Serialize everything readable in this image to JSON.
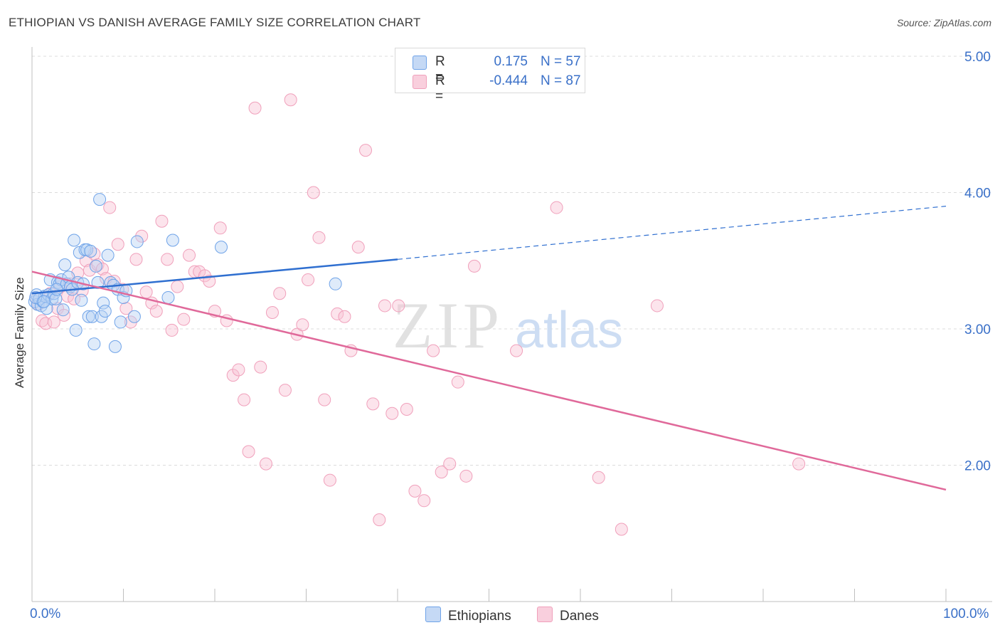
{
  "header": {
    "title": "ETHIOPIAN VS DANISH AVERAGE FAMILY SIZE CORRELATION CHART",
    "source": "Source: ZipAtlas.com"
  },
  "legend": {
    "rows": [
      {
        "r_label": "R =",
        "r_value": "0.175",
        "n_label": "N = 57"
      },
      {
        "r_label": "R =",
        "r_value": "-0.444",
        "n_label": "N = 87"
      }
    ],
    "bottom": [
      "Ethiopians",
      "Danes"
    ]
  },
  "colors": {
    "ethiopians": "#6fa3e8",
    "ethiopians_line": "#2f6fd0",
    "danes": "#f0a0bb",
    "danes_line": "#e0699a",
    "axis_text": "#3a70c8"
  },
  "watermark": {
    "zip": "ZIP",
    "atlas": "atlas"
  },
  "chart_data": {
    "type": "scatter",
    "title": "ETHIOPIAN VS DANISH AVERAGE FAMILY SIZE CORRELATION CHART",
    "xlabel": "",
    "ylabel": "Average Family Size",
    "x_tick_labels": [
      "0.0%",
      "100.0%"
    ],
    "y_tick_labels": [
      "2.00",
      "3.00",
      "4.00",
      "5.00"
    ],
    "xlim": [
      0,
      100
    ],
    "ylim": [
      1.05,
      5.1
    ],
    "grid": true,
    "legend_position": "top-center",
    "series": [
      {
        "name": "Ethiopians",
        "r": 0.175,
        "n": 57,
        "trend": {
          "x": [
            0,
            40,
            100
          ],
          "y": [
            3.26,
            3.51,
            3.9
          ],
          "solid_until": 40
        },
        "points": [
          [
            0.3,
            3.2
          ],
          [
            0.5,
            3.25
          ],
          [
            0.6,
            3.18
          ],
          [
            0.8,
            3.22
          ],
          [
            1.0,
            3.17
          ],
          [
            1.2,
            3.2
          ],
          [
            1.4,
            3.24
          ],
          [
            1.6,
            3.15
          ],
          [
            1.8,
            3.25
          ],
          [
            2.0,
            3.36
          ],
          [
            2.2,
            3.22
          ],
          [
            2.4,
            3.26
          ],
          [
            2.6,
            3.22
          ],
          [
            2.8,
            3.34
          ],
          [
            3.0,
            3.33
          ],
          [
            3.2,
            3.36
          ],
          [
            3.4,
            3.14
          ],
          [
            3.6,
            3.47
          ],
          [
            3.8,
            3.33
          ],
          [
            4.0,
            3.38
          ],
          [
            4.2,
            3.31
          ],
          [
            4.4,
            3.29
          ],
          [
            4.6,
            3.65
          ],
          [
            4.8,
            2.99
          ],
          [
            5.0,
            3.34
          ],
          [
            5.2,
            3.56
          ],
          [
            5.4,
            3.21
          ],
          [
            5.6,
            3.33
          ],
          [
            5.8,
            3.58
          ],
          [
            6.0,
            3.58
          ],
          [
            6.2,
            3.09
          ],
          [
            6.4,
            3.57
          ],
          [
            6.6,
            3.09
          ],
          [
            6.8,
            2.89
          ],
          [
            7.0,
            3.46
          ],
          [
            7.2,
            3.34
          ],
          [
            7.4,
            3.95
          ],
          [
            7.6,
            3.09
          ],
          [
            7.8,
            3.19
          ],
          [
            8.0,
            3.13
          ],
          [
            8.3,
            3.54
          ],
          [
            8.6,
            3.34
          ],
          [
            8.9,
            3.32
          ],
          [
            9.1,
            2.87
          ],
          [
            9.4,
            3.29
          ],
          [
            9.7,
            3.05
          ],
          [
            10.0,
            3.23
          ],
          [
            10.3,
            3.28
          ],
          [
            11.2,
            3.09
          ],
          [
            11.5,
            3.64
          ],
          [
            14.9,
            3.23
          ],
          [
            15.4,
            3.65
          ],
          [
            20.7,
            3.6
          ],
          [
            33.2,
            3.33
          ],
          [
            0.4,
            3.23
          ],
          [
            1.3,
            3.2
          ],
          [
            2.7,
            3.29
          ]
        ]
      },
      {
        "name": "Danes",
        "r": -0.444,
        "n": 87,
        "trend": {
          "x": [
            0,
            100
          ],
          "y": [
            3.42,
            1.82
          ],
          "solid_until": 100
        },
        "points": [
          [
            0.4,
            3.23
          ],
          [
            0.7,
            3.18
          ],
          [
            1.1,
            3.06
          ],
          [
            1.5,
            3.04
          ],
          [
            2.0,
            3.26
          ],
          [
            2.4,
            3.05
          ],
          [
            2.8,
            3.15
          ],
          [
            3.1,
            3.31
          ],
          [
            3.5,
            3.1
          ],
          [
            3.9,
            3.24
          ],
          [
            4.2,
            3.33
          ],
          [
            4.6,
            3.22
          ],
          [
            5.0,
            3.41
          ],
          [
            5.5,
            3.28
          ],
          [
            5.9,
            3.5
          ],
          [
            6.3,
            3.43
          ],
          [
            6.8,
            3.55
          ],
          [
            7.2,
            3.47
          ],
          [
            7.7,
            3.44
          ],
          [
            8.1,
            3.37
          ],
          [
            8.5,
            3.89
          ],
          [
            9.0,
            3.35
          ],
          [
            9.4,
            3.62
          ],
          [
            9.9,
            3.29
          ],
          [
            10.3,
            3.15
          ],
          [
            10.8,
            3.05
          ],
          [
            11.4,
            3.51
          ],
          [
            12.0,
            3.68
          ],
          [
            12.5,
            3.27
          ],
          [
            13.1,
            3.19
          ],
          [
            13.6,
            3.13
          ],
          [
            14.2,
            3.79
          ],
          [
            14.8,
            3.51
          ],
          [
            15.3,
            2.99
          ],
          [
            15.9,
            3.31
          ],
          [
            16.6,
            3.07
          ],
          [
            17.2,
            3.54
          ],
          [
            17.8,
            3.42
          ],
          [
            18.3,
            3.42
          ],
          [
            18.9,
            3.39
          ],
          [
            19.4,
            3.35
          ],
          [
            20.0,
            3.13
          ],
          [
            20.6,
            3.74
          ],
          [
            21.3,
            3.06
          ],
          [
            22.0,
            2.66
          ],
          [
            22.6,
            2.7
          ],
          [
            23.2,
            2.48
          ],
          [
            23.7,
            2.1
          ],
          [
            24.4,
            4.62
          ],
          [
            25.0,
            2.72
          ],
          [
            25.6,
            2.01
          ],
          [
            26.3,
            3.12
          ],
          [
            27.1,
            3.26
          ],
          [
            27.7,
            2.55
          ],
          [
            28.3,
            4.68
          ],
          [
            29.0,
            2.96
          ],
          [
            29.6,
            3.03
          ],
          [
            30.2,
            3.36
          ],
          [
            30.8,
            4.0
          ],
          [
            31.4,
            3.67
          ],
          [
            32.0,
            2.48
          ],
          [
            32.6,
            1.89
          ],
          [
            33.4,
            3.11
          ],
          [
            34.2,
            3.09
          ],
          [
            34.9,
            2.84
          ],
          [
            35.7,
            3.6
          ],
          [
            36.5,
            4.31
          ],
          [
            37.3,
            2.45
          ],
          [
            38.0,
            1.6
          ],
          [
            38.6,
            3.17
          ],
          [
            39.4,
            2.38
          ],
          [
            40.1,
            3.17
          ],
          [
            41.0,
            2.41
          ],
          [
            41.9,
            1.81
          ],
          [
            42.9,
            1.74
          ],
          [
            43.9,
            2.84
          ],
          [
            44.8,
            1.95
          ],
          [
            45.7,
            2.01
          ],
          [
            46.6,
            2.61
          ],
          [
            47.5,
            1.92
          ],
          [
            48.4,
            3.46
          ],
          [
            53.0,
            2.84
          ],
          [
            57.4,
            3.89
          ],
          [
            62.0,
            1.91
          ],
          [
            64.5,
            1.53
          ],
          [
            68.4,
            3.17
          ],
          [
            83.9,
            2.01
          ]
        ]
      }
    ]
  }
}
